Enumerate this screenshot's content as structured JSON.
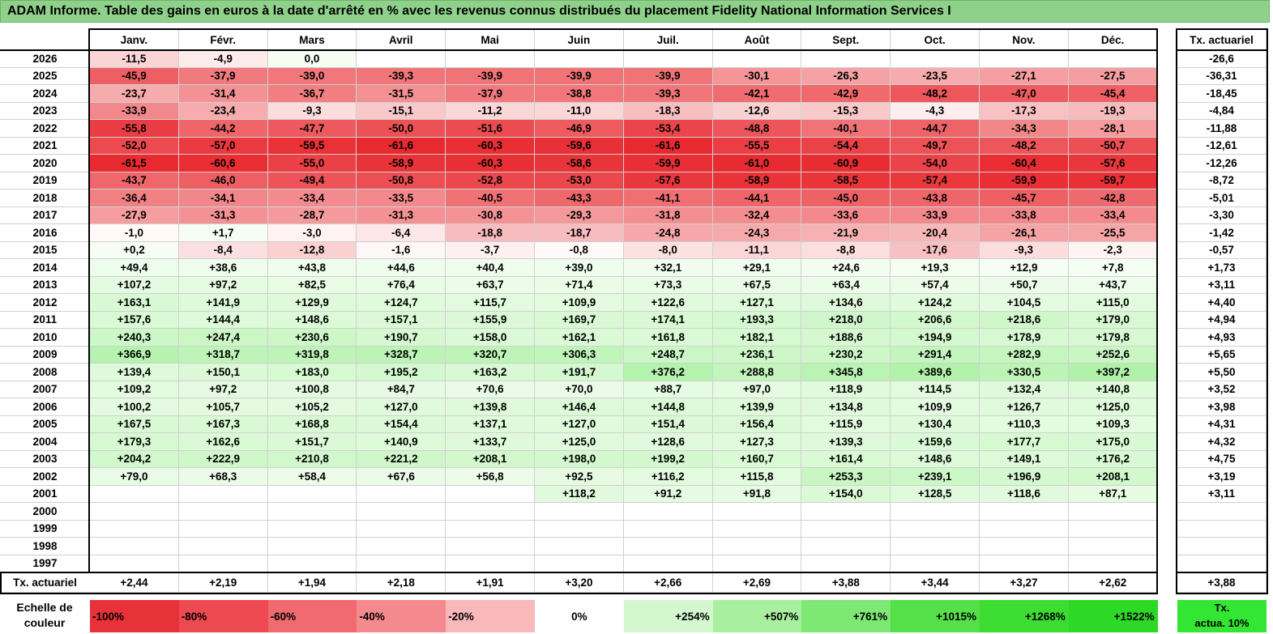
{
  "title": "ADAM Informe. Table des gains en euros à la date d'arrêté en % avec les revenus connus distribués du placement Fidelity National Information Services I",
  "chart_data": {
    "type": "table",
    "columns": [
      "Janv.",
      "Févr.",
      "Mars",
      "Avril",
      "Mai",
      "Juin",
      "Juil.",
      "Août",
      "Sept.",
      "Oct.",
      "Nov.",
      "Déc."
    ],
    "actuarial_header": "Tx. actuariel",
    "rows": [
      {
        "year": "2026",
        "values": [
          "-11,5",
          "-4,9",
          "0,0",
          "",
          "",
          "",
          "",
          "",
          "",
          "",
          "",
          ""
        ],
        "actuarial": "-26,6"
      },
      {
        "year": "2025",
        "values": [
          "-45,9",
          "-37,9",
          "-39,0",
          "-39,3",
          "-39,9",
          "-39,9",
          "-39,9",
          "-30,1",
          "-26,3",
          "-23,5",
          "-27,1",
          "-27,5"
        ],
        "actuarial": "-36,31"
      },
      {
        "year": "2024",
        "values": [
          "-23,7",
          "-31,4",
          "-36,7",
          "-31,5",
          "-37,9",
          "-38,8",
          "-39,3",
          "-42,1",
          "-42,9",
          "-48,2",
          "-47,0",
          "-45,4"
        ],
        "actuarial": "-18,45"
      },
      {
        "year": "2023",
        "values": [
          "-33,9",
          "-23,4",
          "-9,3",
          "-15,1",
          "-11,2",
          "-11,0",
          "-18,3",
          "-12,6",
          "-15,3",
          "-4,3",
          "-17,3",
          "-19,3"
        ],
        "actuarial": "-4,84"
      },
      {
        "year": "2022",
        "values": [
          "-55,8",
          "-44,2",
          "-47,7",
          "-50,0",
          "-51,6",
          "-46,9",
          "-53,4",
          "-48,8",
          "-40,1",
          "-44,7",
          "-34,3",
          "-28,1"
        ],
        "actuarial": "-11,88"
      },
      {
        "year": "2021",
        "values": [
          "-52,0",
          "-57,0",
          "-59,5",
          "-61,6",
          "-60,3",
          "-59,6",
          "-61,6",
          "-55,5",
          "-54,4",
          "-49,7",
          "-48,2",
          "-50,7"
        ],
        "actuarial": "-12,61"
      },
      {
        "year": "2020",
        "values": [
          "-61,5",
          "-60,6",
          "-55,0",
          "-58,9",
          "-60,3",
          "-58,6",
          "-59,9",
          "-61,0",
          "-60,9",
          "-54,0",
          "-60,4",
          "-57,6"
        ],
        "actuarial": "-12,26"
      },
      {
        "year": "2019",
        "values": [
          "-43,7",
          "-46,0",
          "-49,4",
          "-50,8",
          "-52,8",
          "-53,0",
          "-57,6",
          "-58,9",
          "-58,5",
          "-57,4",
          "-59,9",
          "-59,7"
        ],
        "actuarial": "-8,72"
      },
      {
        "year": "2018",
        "values": [
          "-36,4",
          "-34,1",
          "-33,4",
          "-33,5",
          "-40,5",
          "-43,3",
          "-41,1",
          "-44,1",
          "-45,0",
          "-43,8",
          "-45,7",
          "-42,8"
        ],
        "actuarial": "-5,01"
      },
      {
        "year": "2017",
        "values": [
          "-27,9",
          "-31,3",
          "-28,7",
          "-31,3",
          "-30,8",
          "-29,3",
          "-31,8",
          "-32,4",
          "-33,6",
          "-33,9",
          "-33,8",
          "-33,4"
        ],
        "actuarial": "-3,30"
      },
      {
        "year": "2016",
        "values": [
          "-1,0",
          "+1,7",
          "-3,0",
          "-6,4",
          "-18,8",
          "-18,7",
          "-24,8",
          "-24,3",
          "-21,9",
          "-20,4",
          "-26,1",
          "-25,5"
        ],
        "actuarial": "-1,42"
      },
      {
        "year": "2015",
        "values": [
          "+0,2",
          "-8,4",
          "-12,8",
          "-1,6",
          "-3,7",
          "-0,8",
          "-8,0",
          "-11,1",
          "-8,8",
          "-17,6",
          "-9,3",
          "-2,3"
        ],
        "actuarial": "-0,57"
      },
      {
        "year": "2014",
        "values": [
          "+49,4",
          "+38,6",
          "+43,8",
          "+44,6",
          "+40,4",
          "+39,0",
          "+32,1",
          "+29,1",
          "+24,6",
          "+19,3",
          "+12,9",
          "+7,8"
        ],
        "actuarial": "+1,73"
      },
      {
        "year": "2013",
        "values": [
          "+107,2",
          "+97,2",
          "+82,5",
          "+76,4",
          "+63,7",
          "+71,4",
          "+73,3",
          "+67,5",
          "+63,4",
          "+57,4",
          "+50,7",
          "+43,7"
        ],
        "actuarial": "+3,11"
      },
      {
        "year": "2012",
        "values": [
          "+163,1",
          "+141,9",
          "+129,9",
          "+124,7",
          "+115,7",
          "+109,9",
          "+122,6",
          "+127,1",
          "+134,6",
          "+124,2",
          "+104,5",
          "+115,0"
        ],
        "actuarial": "+4,40"
      },
      {
        "year": "2011",
        "values": [
          "+157,6",
          "+144,4",
          "+148,6",
          "+157,1",
          "+155,9",
          "+169,7",
          "+174,1",
          "+193,3",
          "+218,0",
          "+206,6",
          "+218,6",
          "+179,0"
        ],
        "actuarial": "+4,94"
      },
      {
        "year": "2010",
        "values": [
          "+240,3",
          "+247,4",
          "+230,6",
          "+190,7",
          "+158,0",
          "+162,1",
          "+161,8",
          "+182,1",
          "+188,6",
          "+194,9",
          "+178,9",
          "+179,8"
        ],
        "actuarial": "+4,93"
      },
      {
        "year": "2009",
        "values": [
          "+366,9",
          "+318,7",
          "+319,8",
          "+328,7",
          "+320,7",
          "+306,3",
          "+248,7",
          "+236,1",
          "+230,2",
          "+291,4",
          "+282,9",
          "+252,6"
        ],
        "actuarial": "+5,65"
      },
      {
        "year": "2008",
        "values": [
          "+139,4",
          "+150,1",
          "+183,0",
          "+195,2",
          "+163,2",
          "+191,7",
          "+376,2",
          "+288,8",
          "+345,8",
          "+389,6",
          "+330,5",
          "+397,2"
        ],
        "actuarial": "+5,50"
      },
      {
        "year": "2007",
        "values": [
          "+109,2",
          "+97,2",
          "+100,8",
          "+84,7",
          "+70,6",
          "+70,0",
          "+88,7",
          "+97,0",
          "+118,9",
          "+114,5",
          "+132,4",
          "+140,8"
        ],
        "actuarial": "+3,52"
      },
      {
        "year": "2006",
        "values": [
          "+100,2",
          "+105,7",
          "+105,2",
          "+127,0",
          "+139,8",
          "+146,4",
          "+144,8",
          "+139,9",
          "+134,8",
          "+109,9",
          "+126,7",
          "+125,0"
        ],
        "actuarial": "+3,98"
      },
      {
        "year": "2005",
        "values": [
          "+167,5",
          "+167,3",
          "+168,8",
          "+154,4",
          "+137,1",
          "+127,0",
          "+151,4",
          "+156,4",
          "+115,9",
          "+130,4",
          "+110,3",
          "+109,3"
        ],
        "actuarial": "+4,31"
      },
      {
        "year": "2004",
        "values": [
          "+179,3",
          "+162,6",
          "+151,7",
          "+140,9",
          "+133,7",
          "+125,0",
          "+128,6",
          "+127,3",
          "+139,3",
          "+159,6",
          "+177,7",
          "+175,0"
        ],
        "actuarial": "+4,32"
      },
      {
        "year": "2003",
        "values": [
          "+204,2",
          "+222,9",
          "+210,8",
          "+221,2",
          "+208,1",
          "+198,0",
          "+199,2",
          "+160,7",
          "+161,4",
          "+148,6",
          "+149,1",
          "+176,2"
        ],
        "actuarial": "+4,75"
      },
      {
        "year": "2002",
        "values": [
          "+79,0",
          "+68,3",
          "+58,4",
          "+67,6",
          "+56,8",
          "+92,5",
          "+116,2",
          "+115,8",
          "+253,3",
          "+239,1",
          "+196,9",
          "+208,1"
        ],
        "actuarial": "+3,19"
      },
      {
        "year": "2001",
        "values": [
          "",
          "",
          "",
          "",
          "",
          "+118,2",
          "+91,2",
          "+91,8",
          "+154,0",
          "+128,5",
          "+118,6",
          "+87,1"
        ],
        "actuarial": "+3,11"
      },
      {
        "year": "2000",
        "values": [
          "",
          "",
          "",
          "",
          "",
          "",
          "",
          "",
          "",
          "",
          "",
          ""
        ],
        "actuarial": ""
      },
      {
        "year": "1999",
        "values": [
          "",
          "",
          "",
          "",
          "",
          "",
          "",
          "",
          "",
          "",
          "",
          ""
        ],
        "actuarial": ""
      },
      {
        "year": "1998",
        "values": [
          "",
          "",
          "",
          "",
          "",
          "",
          "",
          "",
          "",
          "",
          "",
          ""
        ],
        "actuarial": ""
      },
      {
        "year": "1997",
        "values": [
          "",
          "",
          "",
          "",
          "",
          "",
          "",
          "",
          "",
          "",
          "",
          ""
        ],
        "actuarial": ""
      }
    ],
    "footer": {
      "label": "Tx. actuariel",
      "values": [
        "+2,44",
        "+2,19",
        "+1,94",
        "+2,18",
        "+1,91",
        "+3,20",
        "+2,66",
        "+2,69",
        "+3,88",
        "+3,44",
        "+3,27",
        "+2,62"
      ],
      "actuarial": "+3,88"
    },
    "scale": {
      "label_line1": "Echelle de",
      "label_line2": "couleur",
      "entries": [
        {
          "label": "-100%",
          "color": "#e8323a"
        },
        {
          "label": "-80%",
          "color": "#ec4a50"
        },
        {
          "label": "-60%",
          "color": "#f06a6f"
        },
        {
          "label": "-40%",
          "color": "#f58a8e"
        },
        {
          "label": "-20%",
          "color": "#f9b8ba"
        },
        {
          "label": "0%",
          "color": "#ffffff"
        },
        {
          "label": "+254%",
          "color": "#d4f7d0"
        },
        {
          "label": "+507%",
          "color": "#a8f0a0"
        },
        {
          "label": "+761%",
          "color": "#7de873"
        },
        {
          "label": "+1015%",
          "color": "#55e04a"
        },
        {
          "label": "+1268%",
          "color": "#3cdc33"
        },
        {
          "label": "+1522%",
          "color": "#2dd926"
        }
      ],
      "actuarial_line1": "Tx.",
      "actuarial_line2": "actua. 10%",
      "actuarial_color": "#33e633"
    }
  }
}
